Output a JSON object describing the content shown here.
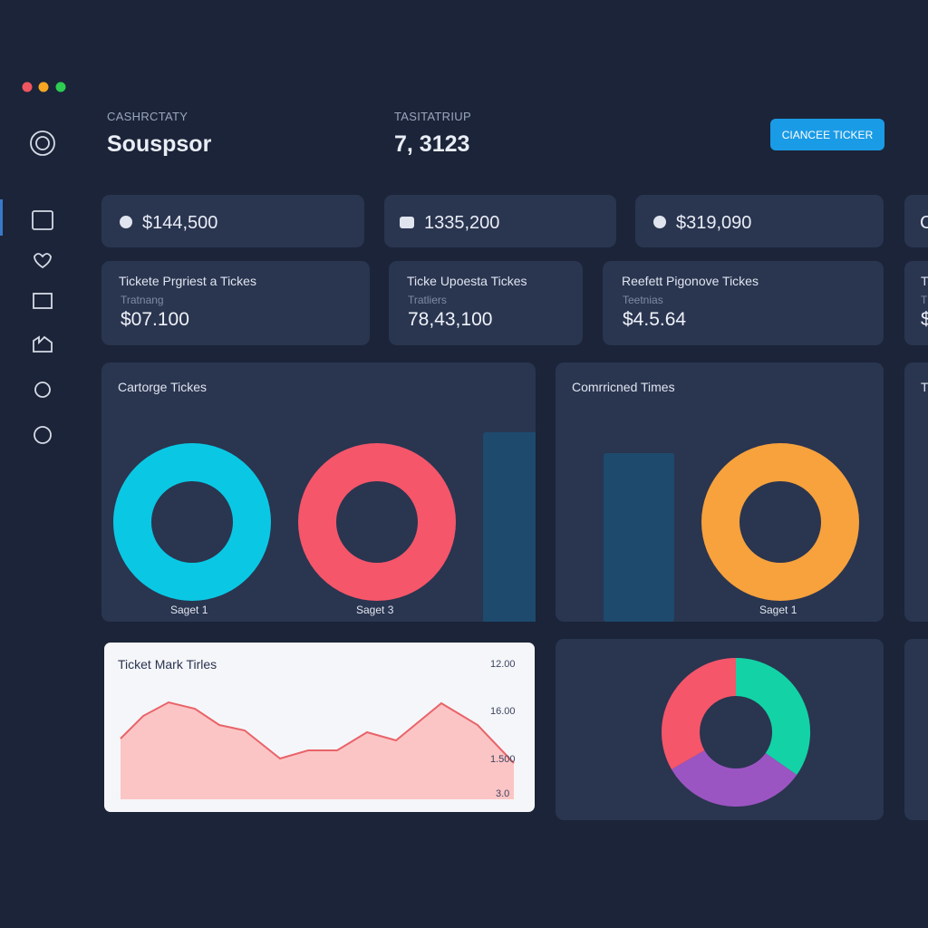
{
  "header": {
    "left_label": "CASHRCTATY",
    "left_value": "Souspsor",
    "right_label": "TASITATRIUP",
    "right_value": "7, 3123",
    "button": "CIANCEE TICKER"
  },
  "stat_cards": [
    "$144,500",
    "1335,200",
    "$319,090",
    "C"
  ],
  "ticket_cards": [
    {
      "title": "Tickete Prgriest a Tickes",
      "subtitle": "Tratnang",
      "value": "$07.100"
    },
    {
      "title": "Ticke Upoesta Tickes",
      "subtitle": "Tratliers",
      "value": "78,43,100"
    },
    {
      "title": "Reefett Pigonove Tickes",
      "subtitle": "Teetnias",
      "value": "$4.5.64"
    },
    {
      "title": "T",
      "subtitle": "T",
      "value": "$"
    }
  ],
  "chart_panels": [
    {
      "title": "Cartorge Tickes",
      "labels": [
        "Saget 1",
        "Saget 3"
      ]
    },
    {
      "title": "Comrricned Times",
      "labels": [
        "Saget 1"
      ]
    },
    {
      "title": "T"
    }
  ],
  "trend_card": {
    "title": "Ticket Mark Tirles",
    "axis_labels": [
      "12.00",
      "16.00",
      "1.500",
      "3.0"
    ]
  }
}
